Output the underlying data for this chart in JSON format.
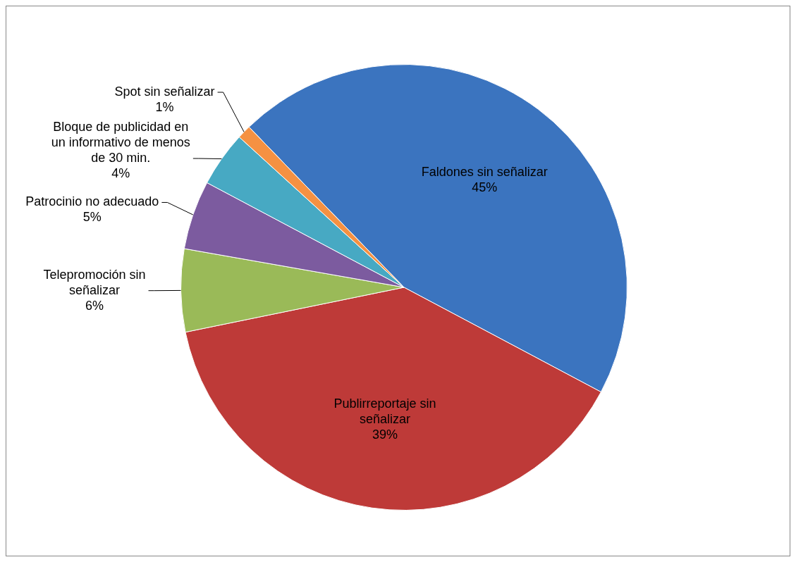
{
  "chart_data": {
    "type": "pie",
    "categories": [
      "Faldones sin señalizar",
      "Publirreportaje sin señalizar",
      "Telepromoción sin señalizar",
      "Patrocinio no adecuado",
      "Bloque de publicidad en un informativo de menos de 30 min.",
      "Spot sin señalizar"
    ],
    "values": [
      45,
      39,
      6,
      5,
      4,
      1
    ],
    "value_labels": [
      "45%",
      "39%",
      "6%",
      "5%",
      "4%",
      "1%"
    ],
    "colors": [
      "#3b74bf",
      "#be3a38",
      "#9aba58",
      "#7c5b9f",
      "#47a9c3",
      "#f59142"
    ],
    "legend": false
  }
}
